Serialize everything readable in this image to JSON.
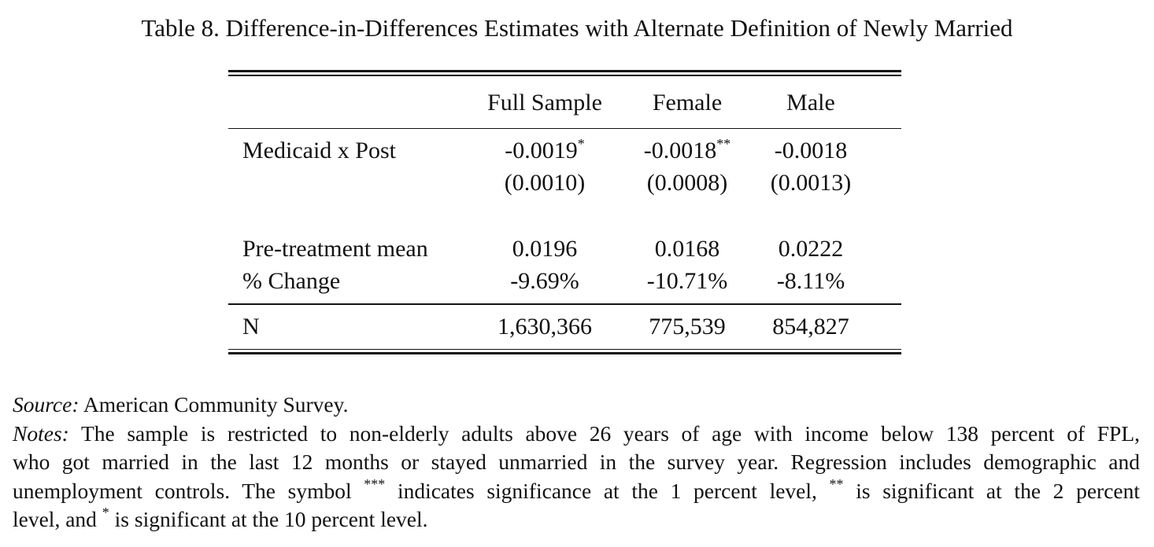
{
  "caption": "Table 8. Difference-in-Differences Estimates with Alternate Definition of Newly Married",
  "table": {
    "columns": [
      "",
      "Full Sample",
      "Female",
      "Male"
    ],
    "medicaid_row": {
      "label": "Medicaid x Post",
      "coef": [
        "-0.0019",
        "-0.0018",
        "-0.0018"
      ],
      "stars": [
        "*",
        "**",
        ""
      ],
      "se": [
        "(0.0010)",
        "(0.0008)",
        "(0.0013)"
      ]
    },
    "pretreatment_row": {
      "label": "Pre-treatment mean",
      "values": [
        "0.0196",
        "0.0168",
        "0.0222"
      ]
    },
    "change_row": {
      "label": "% Change",
      "values": [
        "-9.69%",
        "-10.71%",
        "-8.11%"
      ]
    },
    "n_row": {
      "label": "N",
      "values": [
        "1,630,366",
        "775,539",
        "854,827"
      ]
    }
  },
  "notes": {
    "source_label": "Source:",
    "source_text": " American Community Survey.",
    "notes_label": "Notes:",
    "line1": " The sample is restricted to non-elderly adults above 26 years of age with income below 138 percent of FPL,",
    "line2": "who got married in the last 12 months or stayed unmarried in the survey year. Regression includes demographic and",
    "line3_a": "unemployment controls. The symbol ",
    "line3_sym1": "***",
    "line3_b": " indicates significance at the 1 percent level, ",
    "line3_sym2": "**",
    "line3_c": " is significant at the 2 percent",
    "line4_a": "level, and ",
    "line4_sym": "*",
    "line4_b": " is significant at the 10 percent level."
  }
}
